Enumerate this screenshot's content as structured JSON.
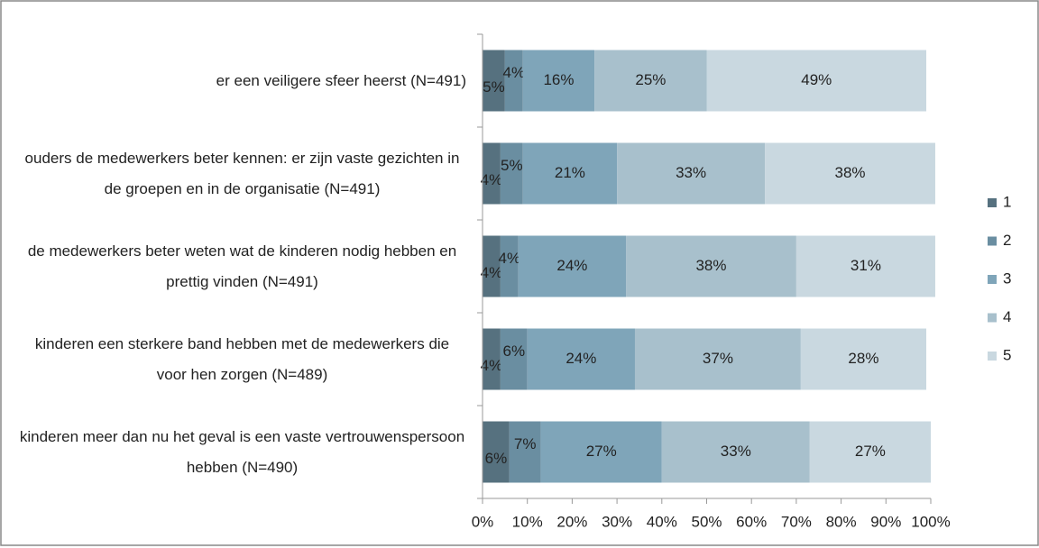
{
  "chart_data": {
    "type": "stacked-barh",
    "categories": [
      "er een veiligere sfeer heerst  (N=491)",
      "ouders de medewerkers beter kennen: er zijn vaste gezichten in de groepen en in de organisatie (N=491)",
      "de medewerkers beter weten wat de kinderen nodig hebben en prettig vinden (N=491)",
      "kinderen een sterkere band hebben met de medewerkers die voor hen zorgen  (N=489)",
      "kinderen meer dan nu het geval is een vaste vertrouwenspersoon hebben  (N=490)"
    ],
    "series": [
      {
        "name": "1",
        "color": "#56717f",
        "values": [
          5,
          4,
          4,
          4,
          6
        ],
        "value_labels": [
          "5%",
          "4%",
          "4%",
          "4%",
          "6%"
        ]
      },
      {
        "name": "2",
        "color": "#6a8ea1",
        "values": [
          4,
          5,
          4,
          6,
          7
        ],
        "value_labels": [
          "4%",
          "5%",
          "4%",
          "6%",
          "7%"
        ]
      },
      {
        "name": "3",
        "color": "#7fa5b9",
        "values": [
          16,
          21,
          24,
          24,
          27
        ],
        "value_labels": [
          "16%",
          "21%",
          "24%",
          "24%",
          "27%"
        ]
      },
      {
        "name": "4",
        "color": "#a8c0cc",
        "values": [
          25,
          33,
          38,
          37,
          33
        ],
        "value_labels": [
          "25%",
          "33%",
          "38%",
          "37%",
          "33%"
        ]
      },
      {
        "name": "5",
        "color": "#c9d8e0",
        "values": [
          49,
          38,
          31,
          28,
          27
        ],
        "value_labels": [
          "49%",
          "38%",
          "31%",
          "28%",
          "27%"
        ]
      }
    ],
    "xlim": [
      0,
      100
    ],
    "xticks": [
      {
        "value": 0,
        "label": "0%"
      },
      {
        "value": 10,
        "label": "10%"
      },
      {
        "value": 20,
        "label": "20%"
      },
      {
        "value": 30,
        "label": "30%"
      },
      {
        "value": 40,
        "label": "40%"
      },
      {
        "value": 50,
        "label": "50%"
      },
      {
        "value": 60,
        "label": "60%"
      },
      {
        "value": 70,
        "label": "70%"
      },
      {
        "value": 80,
        "label": "80%"
      },
      {
        "value": 90,
        "label": "90%"
      },
      {
        "value": 100,
        "label": "100%"
      }
    ],
    "legend": "right"
  }
}
